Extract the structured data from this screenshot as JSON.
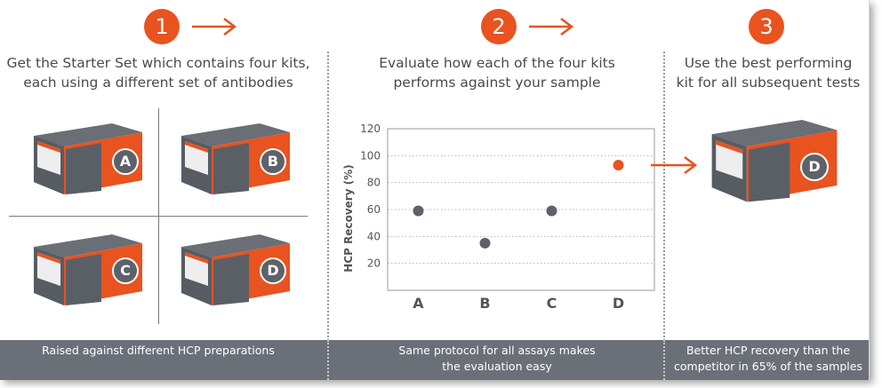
{
  "steps": [
    {
      "number": "1",
      "heading_line1": "Get the Starter Set which contains four kits,",
      "heading_line2": "each using a different set of antibodies",
      "footer_line1": "Raised against different HCP preparations",
      "footer_line2": ""
    },
    {
      "number": "2",
      "heading_line1": "Evaluate how each of the four kits",
      "heading_line2": "performs against your sample",
      "footer_line1": "Same protocol for all assays makes",
      "footer_line2": "the evaluation easy"
    },
    {
      "number": "3",
      "heading_line1": "Use the best performing",
      "heading_line2": "kit for all subsequent tests",
      "footer_line1": "Better HCP recovery than the",
      "footer_line2": "competitor in 65% of the samples"
    }
  ],
  "kits": [
    "A",
    "B",
    "C",
    "D"
  ],
  "best_kit": "D",
  "colors": {
    "accent": "#e8531f",
    "footer": "#6b7078",
    "point": "#5d6168",
    "box_dark": "#4f545b"
  },
  "chart_data": {
    "type": "scatter",
    "title": "",
    "xlabel": "",
    "ylabel": "HCP Recovery (%)",
    "categories": [
      "A",
      "B",
      "C",
      "D"
    ],
    "values": [
      59,
      35,
      59,
      93
    ],
    "highlight": "D",
    "ylim": [
      0,
      120
    ],
    "yticks": [
      20,
      40,
      60,
      80,
      100,
      120
    ],
    "grid": "horizontal dotted"
  }
}
